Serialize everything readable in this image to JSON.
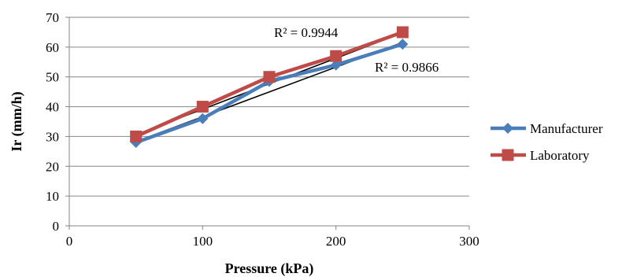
{
  "chart_data": {
    "type": "scatter",
    "xlabel": "Pressure (kPa)",
    "ylabel": "Ir (mm/h)",
    "xlim": [
      0,
      300
    ],
    "ylim": [
      0,
      70
    ],
    "xticks": [
      0,
      100,
      200,
      300
    ],
    "yticks": [
      0,
      10,
      20,
      30,
      40,
      50,
      60,
      70
    ],
    "grid": "horizontal",
    "legend_position": "right",
    "series": [
      {
        "name": "Manufacturer",
        "color": "#4a7ebb",
        "marker": "diamond",
        "x": [
          50,
          100,
          150,
          200,
          250
        ],
        "y": [
          28,
          36,
          48.5,
          54,
          61
        ],
        "trendline": {
          "type": "linear",
          "r2_label": "R² = 0.9866",
          "start_y": 28.3,
          "end_y": 61.6
        }
      },
      {
        "name": "Laboratory",
        "color": "#be4b48",
        "marker": "square",
        "x": [
          50,
          100,
          150,
          200,
          250
        ],
        "y": [
          30,
          40,
          50,
          57,
          65
        ],
        "trendline": {
          "type": "linear",
          "r2_label": "R² = 0.9944",
          "start_y": 30.6,
          "end_y": 64.8
        }
      }
    ]
  }
}
